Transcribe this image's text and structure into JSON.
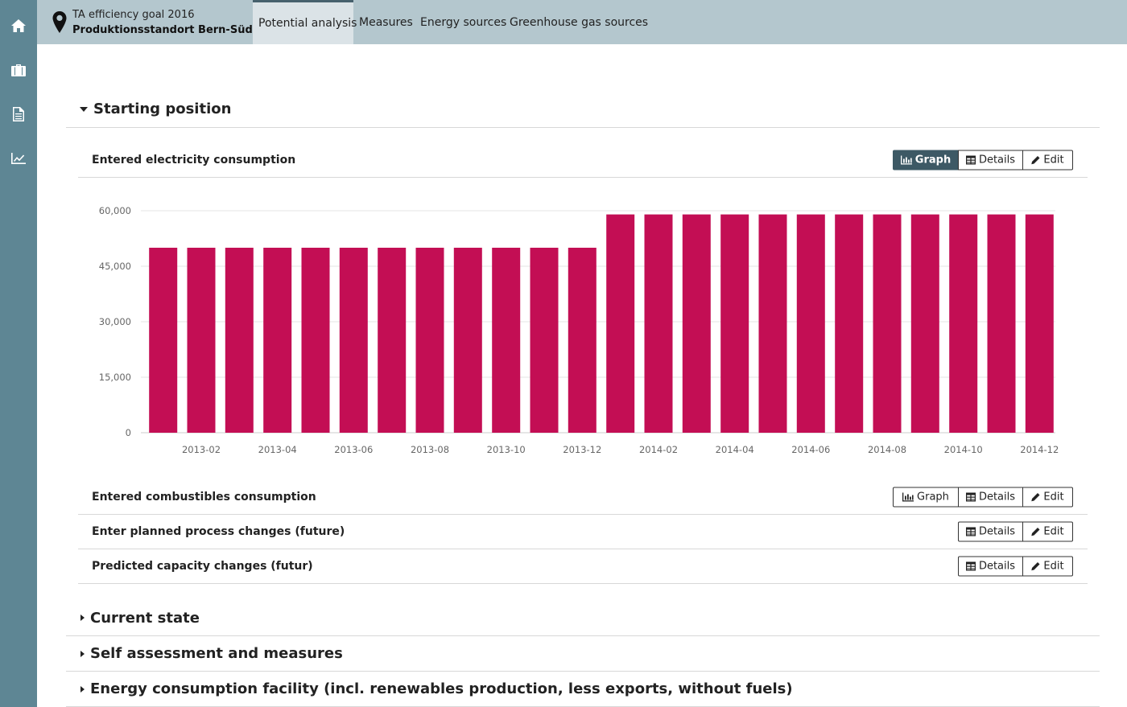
{
  "sidebar": {
    "items": [
      {
        "icon": "home-icon"
      },
      {
        "icon": "briefcase-icon"
      },
      {
        "icon": "document-icon"
      },
      {
        "icon": "line-chart-icon"
      }
    ]
  },
  "header": {
    "location_line1": "TA efficiency goal 2016",
    "location_line2": "Produktionsstandort Bern-Süd",
    "tabs": [
      {
        "label": "Potential analysis",
        "active": true
      },
      {
        "label": "Measures",
        "active": false
      },
      {
        "label": "Energy sources",
        "active": false
      },
      {
        "label": "Greenhouse gas sources",
        "active": false
      }
    ]
  },
  "sections": {
    "starting_position": "Starting position",
    "current_state": "Current state",
    "self_assessment": "Self assessment and measures",
    "energy_consumption": "Energy consumption facility (incl. renewables production, less exports, without fuels)"
  },
  "panels": {
    "electricity": "Entered electricity consumption",
    "combustibles": "Entered combustibles consumption",
    "process_changes": "Enter planned process changes (future)",
    "capacity_changes": "Predicted capacity changes (futur)"
  },
  "buttons": {
    "graph": "Graph",
    "details": "Details",
    "edit": "Edit"
  },
  "colors": {
    "bar": "#c30e54",
    "sidebar": "#5e8694",
    "topbar": "#b4c7ce",
    "active_button": "#3d5965"
  },
  "chart_data": {
    "type": "bar",
    "categories": [
      "2013-01",
      "2013-02",
      "2013-03",
      "2013-04",
      "2013-05",
      "2013-06",
      "2013-07",
      "2013-08",
      "2013-09",
      "2013-10",
      "2013-11",
      "2013-12",
      "2014-01",
      "2014-02",
      "2014-03",
      "2014-04",
      "2014-05",
      "2014-06",
      "2014-07",
      "2014-08",
      "2014-09",
      "2014-10",
      "2014-11",
      "2014-12"
    ],
    "x_tick_labels": [
      "2013-02",
      "2013-04",
      "2013-06",
      "2013-08",
      "2013-10",
      "2013-12",
      "2014-02",
      "2014-04",
      "2014-06",
      "2014-08",
      "2014-10",
      "2014-12"
    ],
    "values": [
      50000,
      50000,
      50000,
      50000,
      50000,
      50000,
      50000,
      50000,
      50000,
      50000,
      50000,
      50000,
      59000,
      59000,
      59000,
      59000,
      59000,
      59000,
      59000,
      59000,
      59000,
      59000,
      59000,
      59000
    ],
    "y_ticks": [
      0,
      15000,
      30000,
      45000,
      60000
    ],
    "y_tick_labels": [
      "0",
      "15,000",
      "30,000",
      "45,000",
      "60,000"
    ],
    "ylim": [
      0,
      60000
    ],
    "grid": true,
    "legend": "none"
  }
}
